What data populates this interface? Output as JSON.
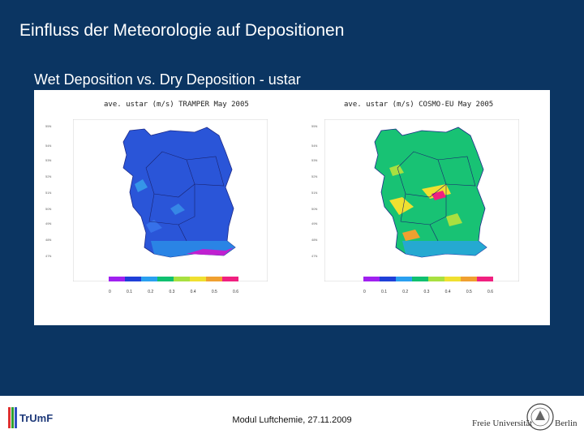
{
  "slide": {
    "title": "Einfluss der Meteorologie auf Depositionen",
    "subtitle": "Wet Deposition vs. Dry Deposition - ustar"
  },
  "panels": [
    {
      "title": "ave. ustar (m/s) TRAMPER May 2005",
      "colorbar_labels": [
        "0",
        "0.1",
        "0.2",
        "0.3",
        "0.4",
        "0.5",
        "0.6"
      ]
    },
    {
      "title": "ave. ustar (m/s) COSMO-EU May 2005",
      "colorbar_labels": [
        "0",
        "0.1",
        "0.2",
        "0.3",
        "0.4",
        "0.5",
        "0.6"
      ]
    }
  ],
  "colors": {
    "background": "#0b3562",
    "colorbar": [
      "#a020f0",
      "#1f3fd8",
      "#2aa0f0",
      "#10c070",
      "#a8e040",
      "#f0e030",
      "#f0a030",
      "#f02080"
    ]
  },
  "footer": {
    "text": "Modul Luftchemie, 27.11.2009",
    "logo_left": "TrUmF",
    "logo_right_1": "Freie Universität",
    "logo_right_2": "Berlin"
  }
}
